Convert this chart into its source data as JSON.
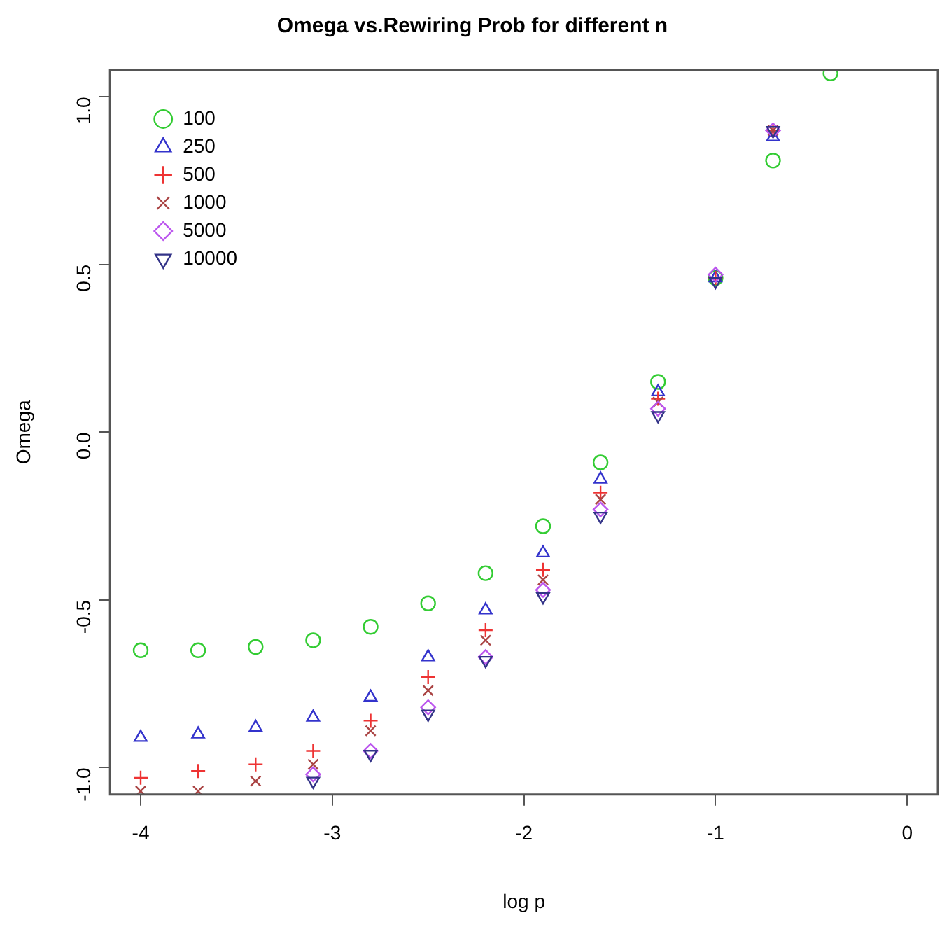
{
  "chart_data": {
    "type": "scatter",
    "title": "Omega vs.Rewiring Prob for different n",
    "xlabel": "log p",
    "ylabel": "Omega",
    "x": [
      -4,
      -3.7,
      -3.4,
      -3.1,
      -2.8,
      -2.5,
      -2.2,
      -1.9,
      -1.6,
      -1.3,
      -1.0,
      -0.7,
      -0.4
    ],
    "series": [
      {
        "name": "100",
        "color": "#33cc33",
        "marker": "circle",
        "values": [
          -0.65,
          -0.65,
          -0.64,
          -0.62,
          -0.58,
          -0.51,
          -0.42,
          -0.28,
          -0.09,
          0.15,
          0.46,
          0.81,
          1.07
        ]
      },
      {
        "name": "250",
        "color": "#3333cc",
        "marker": "triangle",
        "values": [
          -0.91,
          -0.9,
          -0.88,
          -0.85,
          -0.79,
          -0.67,
          -0.53,
          -0.36,
          -0.14,
          0.12,
          0.46,
          0.88,
          null
        ]
      },
      {
        "name": "500",
        "color": "#ee3333",
        "marker": "cross",
        "values": [
          -1.03,
          -1.01,
          -0.99,
          -0.95,
          -0.86,
          -0.73,
          -0.59,
          -0.41,
          -0.18,
          0.1,
          0.46,
          0.9,
          null
        ]
      },
      {
        "name": "1000",
        "color": "#aa4444",
        "marker": "x",
        "values": [
          -1.07,
          -1.07,
          -1.04,
          -0.99,
          -0.89,
          -0.77,
          -0.62,
          -0.44,
          -0.2,
          0.09,
          null,
          0.9,
          null
        ]
      },
      {
        "name": "5000",
        "color": "#bb55ee",
        "marker": "diamond",
        "values": [
          null,
          null,
          null,
          -1.02,
          -0.95,
          -0.82,
          -0.67,
          -0.47,
          -0.23,
          0.07,
          0.47,
          0.9,
          null
        ]
      },
      {
        "name": "10000",
        "color": "#333388",
        "marker": "triangle-down",
        "values": [
          null,
          null,
          null,
          -1.04,
          -0.96,
          -0.84,
          -0.68,
          -0.49,
          -0.25,
          0.05,
          0.45,
          0.9,
          null
        ]
      }
    ],
    "xlim": [
      -4.16,
      0.16
    ],
    "xticks": [
      -4,
      -3,
      -2,
      -1,
      0
    ],
    "ylim": [
      -1.08,
      1.08
    ],
    "yticks": [
      {
        "value": -1,
        "label": "-1.0"
      },
      {
        "value": -0.5,
        "label": "-0.5"
      },
      {
        "value": 0,
        "label": "0.0"
      },
      {
        "value": 0.5,
        "label": "0.5"
      },
      {
        "value": 1,
        "label": "1.0"
      }
    ],
    "grid": false,
    "legend": "top left"
  }
}
